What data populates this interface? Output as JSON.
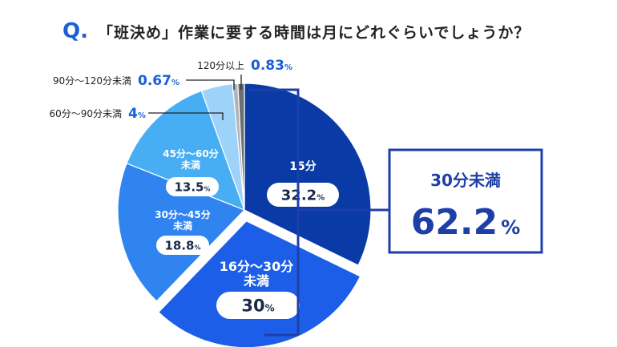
{
  "question": {
    "mark": "Q.",
    "text": "「班決め」作業に要する時間は月にどれぐらいでしょうか？"
  },
  "colors": {
    "accent": "#1a5fd6",
    "text": "#222222",
    "box_border": "#1e3fa8"
  },
  "chart_data": {
    "type": "pie",
    "title": "「班決め」作業に要する時間は月にどれぐらいでしょうか？",
    "unit": "%",
    "slices": [
      {
        "label": "15分",
        "value": 32.2,
        "value_text": "32.2",
        "color": "#0a3aa6"
      },
      {
        "label": "16分～30分未満",
        "value": 30,
        "value_text": "30",
        "color": "#1c5ee8"
      },
      {
        "label": "30分～45分未満",
        "value": 18.8,
        "value_text": "18.8",
        "color": "#2f84f0"
      },
      {
        "label": "45分～60分未満",
        "value": 13.5,
        "value_text": "13.5",
        "color": "#47aef4"
      },
      {
        "label": "60分～90分未満",
        "value": 4,
        "value_text": "4",
        "color": "#9dd3f9"
      },
      {
        "label": "90分～120分未満",
        "value": 0.67,
        "value_text": "0.67",
        "color": "#b0b4ba"
      },
      {
        "label": "120分以上",
        "value": 0.83,
        "value_text": "0.83",
        "color": "#6b6f75"
      }
    ],
    "summary": {
      "label": "30分未満",
      "value": 62.2,
      "value_text": "62.2"
    }
  }
}
